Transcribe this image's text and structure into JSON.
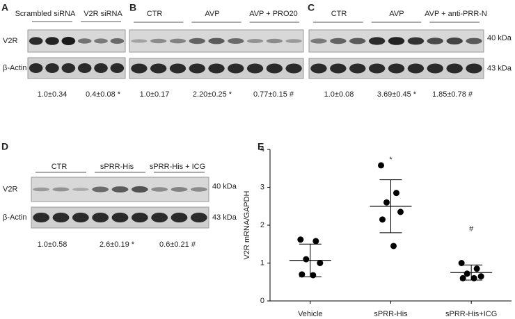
{
  "panels": [
    {
      "letter": "A",
      "groups": [
        "Scrambled siRNA",
        "V2R siRNA"
      ],
      "rows": [
        "V2R",
        "β-Actin"
      ],
      "quant": [
        "1.0±0.34",
        "0.4±0.08 *"
      ]
    },
    {
      "letter": "B",
      "groups": [
        "CTR",
        "AVP",
        "AVP + PRO20"
      ],
      "quant": [
        "1.0±0.17",
        "2.20±0.25 *",
        "0.77±0.15 #"
      ]
    },
    {
      "letter": "C",
      "groups": [
        "CTR",
        "AVP",
        "AVP + anti-PRR-N"
      ],
      "kda": [
        "40 kDa",
        "43 kDa"
      ],
      "quant": [
        "1.0±0.08",
        "3.69±0.45 *",
        "1.85±0.78 #"
      ]
    },
    {
      "letter": "D",
      "groups": [
        "CTR",
        "sPRR-His",
        "sPRR-His + ICG"
      ],
      "rows": [
        "V2R",
        "β-Actin"
      ],
      "kda": [
        "40 kDa",
        "43 kDa"
      ],
      "quant": [
        "1.0±0.58",
        "2.6±0.19 *",
        "0.6±0.21 #"
      ]
    }
  ],
  "chart_data": {
    "type": "scatter",
    "label": "E",
    "ylabel": "V2R mRNA/GAPDH",
    "categories": [
      "Vehicle",
      "sPRR-His",
      "sPRR-His+ICG"
    ],
    "values": [
      [
        1.62,
        1.58,
        1.1,
        1.0,
        0.7,
        0.68
      ],
      [
        3.58,
        2.85,
        2.6,
        2.35,
        2.15,
        1.45
      ],
      [
        1.0,
        0.85,
        0.72,
        0.65,
        0.6,
        0.6
      ]
    ],
    "means": [
      1.07,
      2.5,
      0.75
    ],
    "errors": [
      0.43,
      0.7,
      0.2
    ],
    "annotations": [
      null,
      "*",
      "#"
    ],
    "ylim": [
      0,
      4
    ],
    "yticks": [
      0,
      1,
      2,
      3,
      4
    ],
    "color": "#000000"
  }
}
